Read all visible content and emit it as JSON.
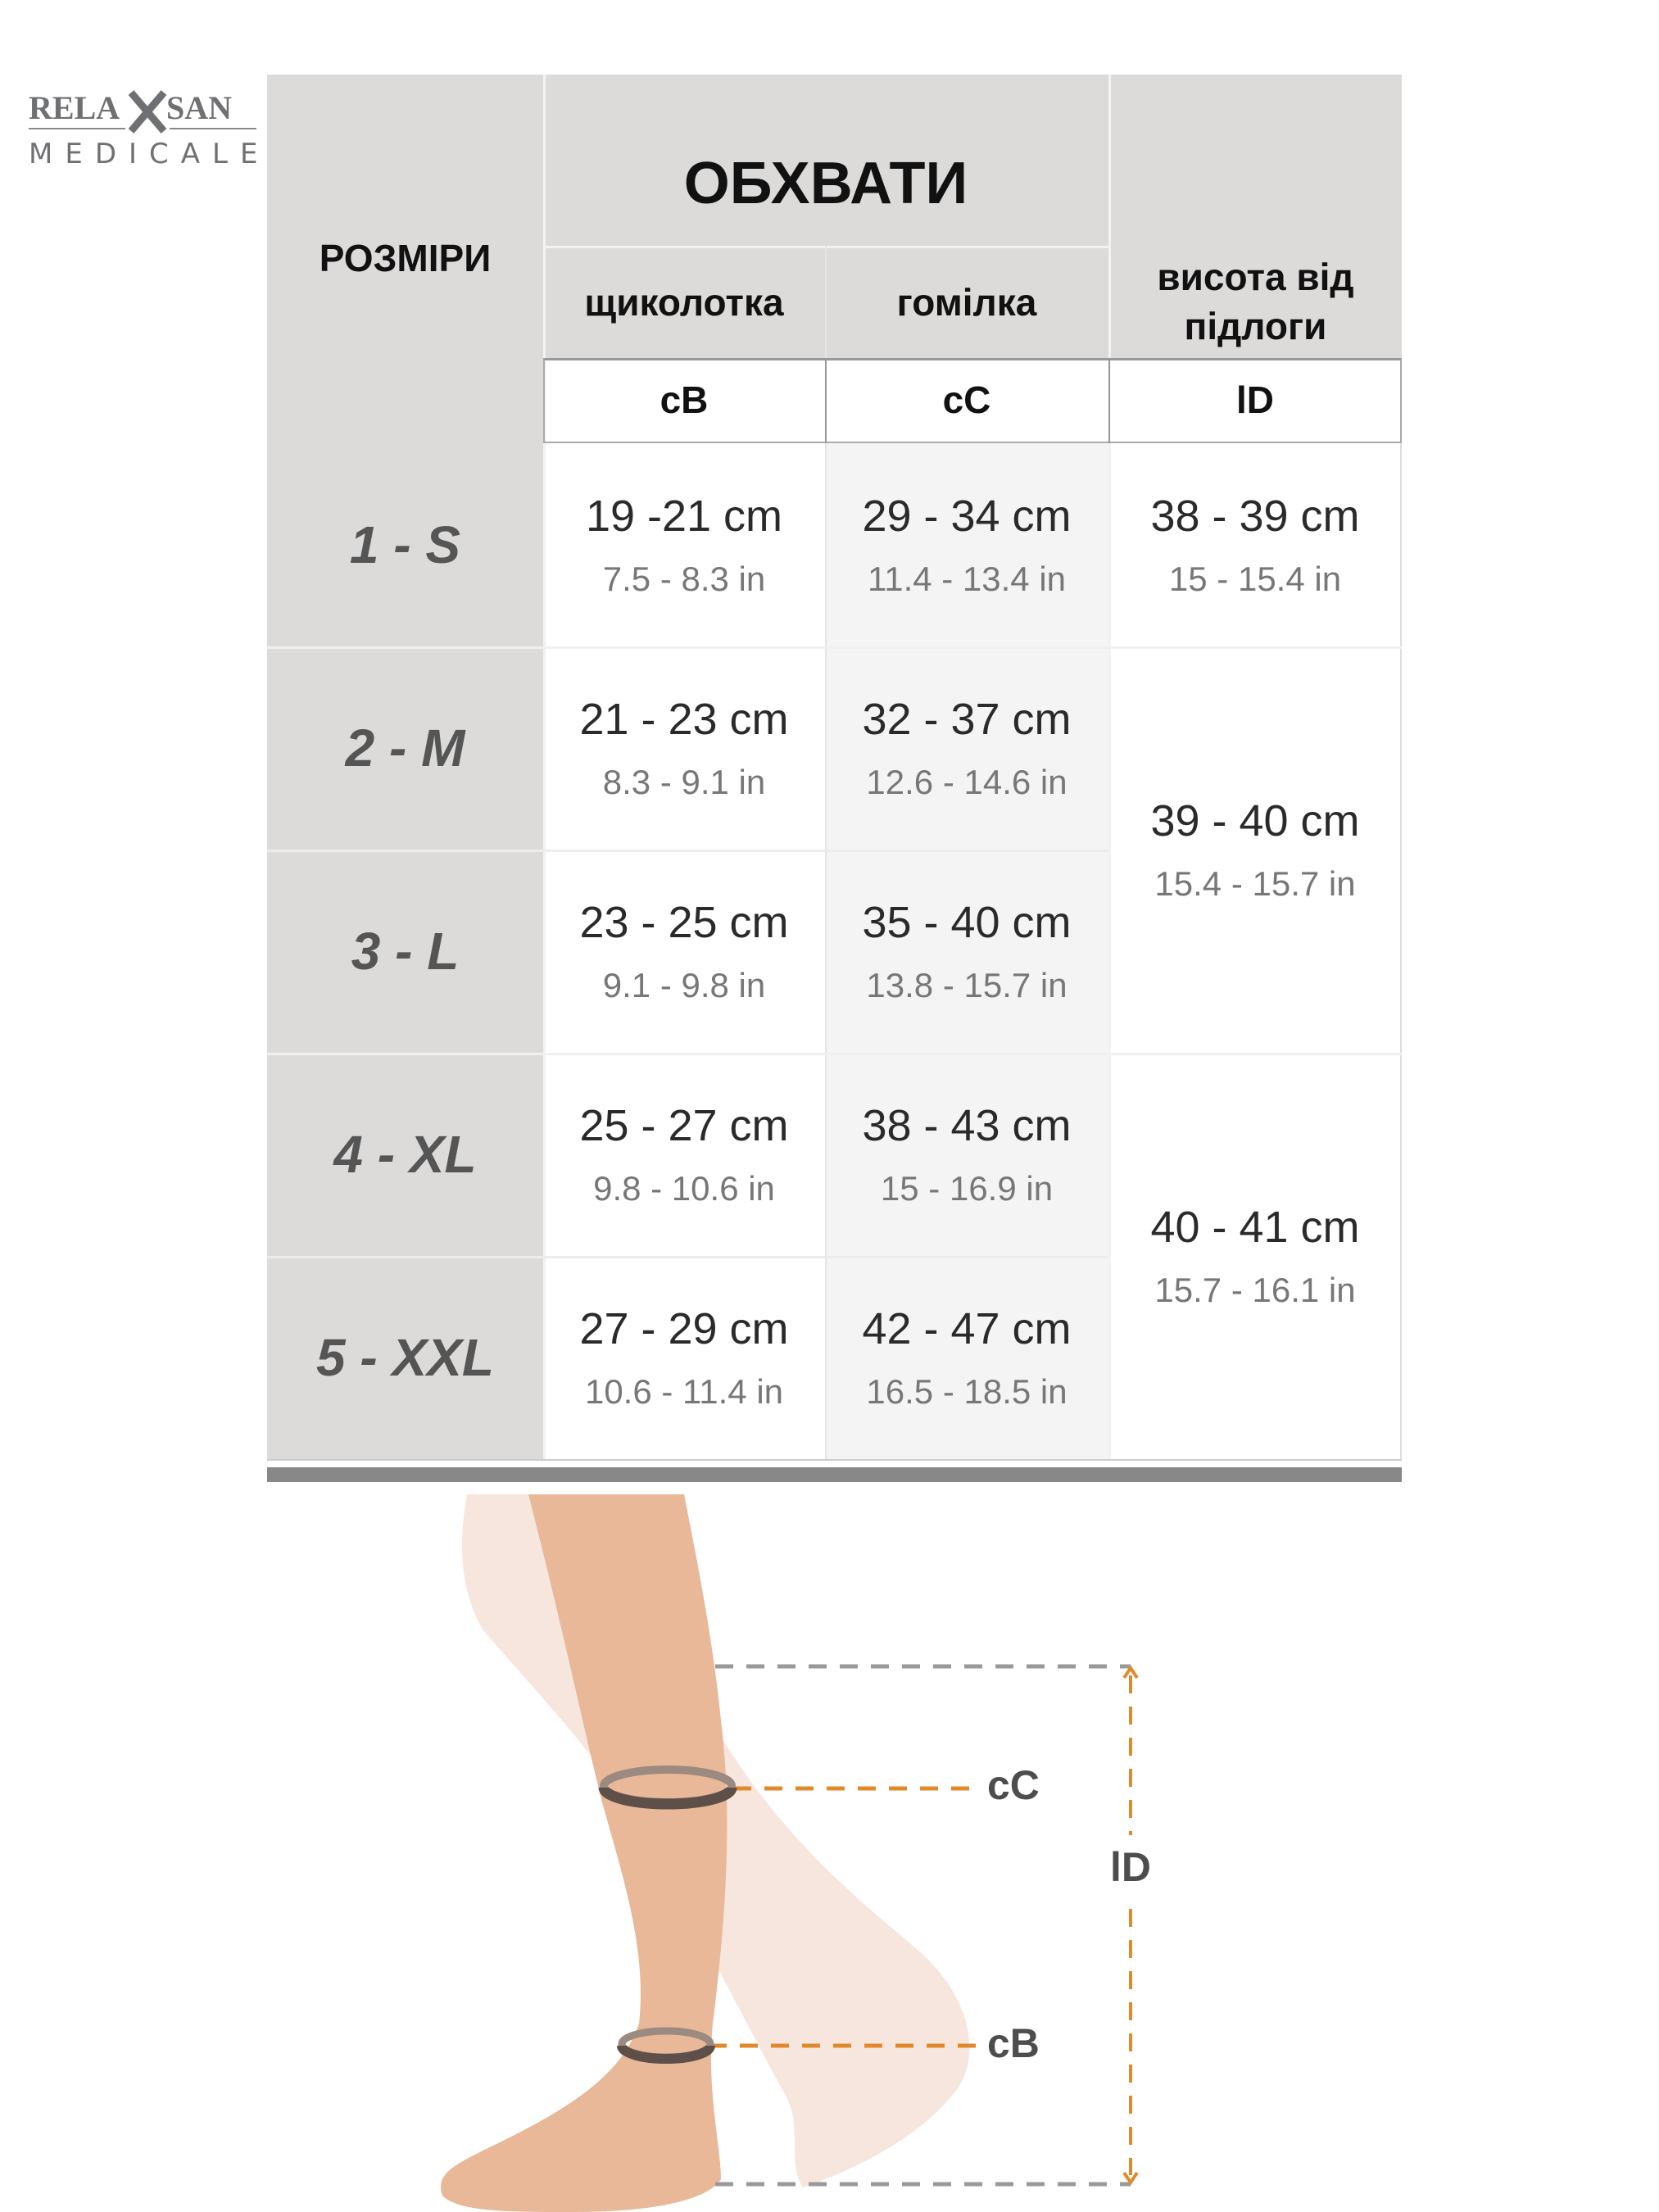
{
  "logo": {
    "brand": "RELAXSAN",
    "sub": "MEDICALE"
  },
  "header": {
    "sizes": "РОЗМІРИ",
    "girths": "ОБХВАТИ",
    "ankle": "щиколотка",
    "calf": "гомілка",
    "height": "висота від підлоги",
    "codes": [
      "cB",
      "cC",
      "lD"
    ]
  },
  "rows": [
    {
      "size": "1 - S",
      "cB_cm": "19 -21 cm",
      "cB_in": "7.5 - 8.3 in",
      "cC_cm": "29 - 34 cm",
      "cC_in": "11.4 - 13.4 in"
    },
    {
      "size": "2 - M",
      "cB_cm": "21 - 23 cm",
      "cB_in": "8.3 - 9.1 in",
      "cC_cm": "32 - 37 cm",
      "cC_in": "12.6 - 14.6 in"
    },
    {
      "size": "3 - L",
      "cB_cm": "23 - 25 cm",
      "cB_in": "9.1 - 9.8 in",
      "cC_cm": "35 - 40 cm",
      "cC_in": "13.8 - 15.7 in"
    },
    {
      "size": "4 - XL",
      "cB_cm": "25 - 27 cm",
      "cB_in": "9.8 - 10.6 in",
      "cC_cm": "38 - 43 cm",
      "cC_in": "15 - 16.9 in"
    },
    {
      "size": "5 - XXL",
      "cB_cm": "27 - 29 cm",
      "cB_in": "10.6 - 11.4 in",
      "cC_cm": "42 - 47 cm",
      "cC_in": "16.5 - 18.5 in"
    }
  ],
  "heights": [
    {
      "cm": "38 - 39 cm",
      "in": "15 - 15.4 in"
    },
    {
      "cm": "39 - 40 cm",
      "in": "15.4 - 15.7 in"
    },
    {
      "cm": "40 - 41 cm",
      "in": "15.7 - 16.1 in"
    }
  ],
  "diagram": {
    "cC": "cC",
    "cB": "cB",
    "lD": "lD"
  },
  "colors": {
    "header_gray": "#dcdbda",
    "accent_orange": "#e08a2c",
    "ring": "#5e5048"
  }
}
